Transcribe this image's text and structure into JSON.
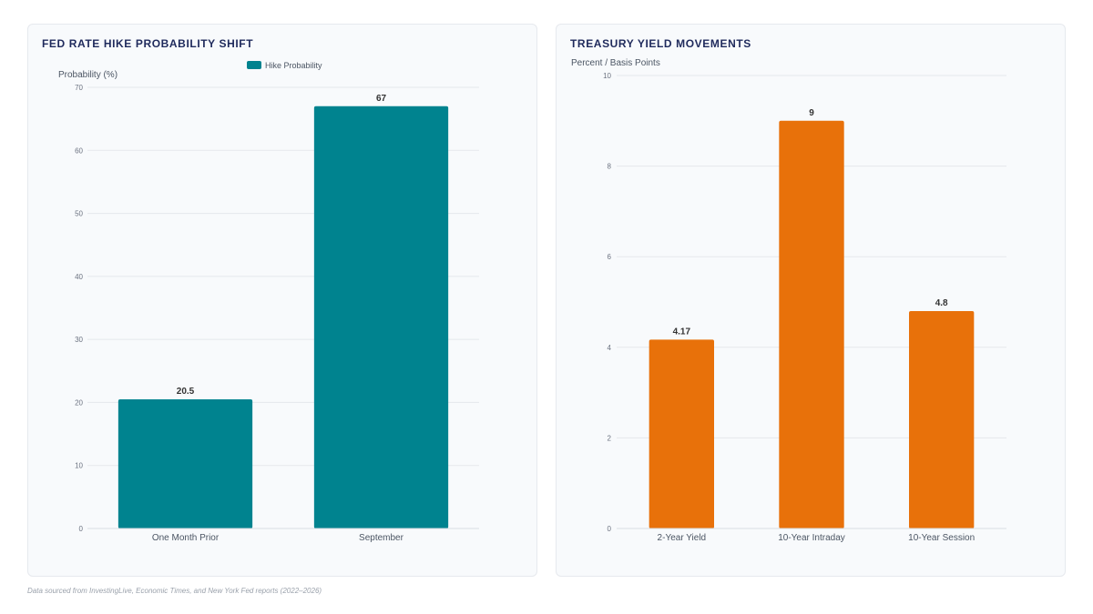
{
  "charts": {
    "left": {
      "title": "FED RATE HIKE PROBABILITY SHIFT",
      "chart_data": {
        "type": "bar",
        "title": "FED RATE HIKE PROBABILITY SHIFT",
        "categories": [
          "One Month Prior",
          "September"
        ],
        "series": [
          {
            "name": "Hike Probability",
            "values": [
              20.5,
              67
            ]
          }
        ],
        "ylabel": "Probability (%)",
        "xlabel": "",
        "ylim": [
          0,
          70
        ],
        "yticks": [
          0,
          10,
          20,
          30,
          40,
          50,
          60,
          70
        ],
        "data_labels": [
          "20.5",
          "67"
        ],
        "legend": "top-center",
        "grid": true,
        "color": "#00838f"
      }
    },
    "right": {
      "title": "TREASURY YIELD MOVEMENTS",
      "chart_data": {
        "type": "bar",
        "title": "TREASURY YIELD MOVEMENTS",
        "categories": [
          "2-Year Yield",
          "10-Year Intraday",
          "10-Year Session"
        ],
        "values": [
          4.17,
          9,
          4.8
        ],
        "ylabel": "Percent / Basis Points",
        "xlabel": "",
        "ylim": [
          0,
          10
        ],
        "yticks": [
          0,
          2,
          4,
          6,
          8,
          10
        ],
        "data_labels": [
          "4.17",
          "9",
          "4.8"
        ],
        "grid": true,
        "color": "#e8710a"
      }
    }
  },
  "footnote": "Data sourced from InvestingLive, Economic Times, and New York Fed reports (2022–2026)"
}
